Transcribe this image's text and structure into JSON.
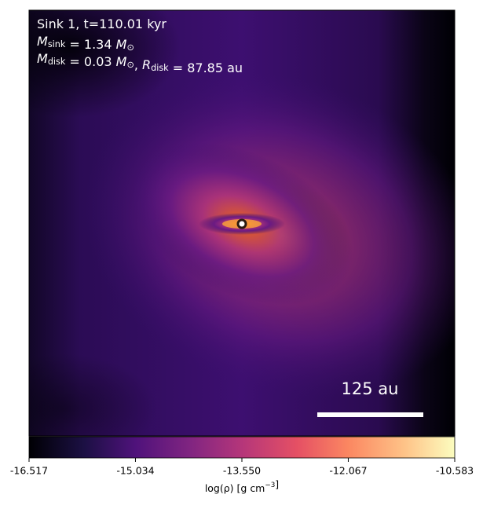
{
  "chart_data": {
    "type": "image",
    "annotations": [
      [
        {
          "text": "Sink 1, t=110.01 kyr"
        }
      ],
      [
        {
          "text": "M",
          "italic": true
        },
        {
          "sub": "sink"
        },
        {
          "text": " = 1.34 "
        },
        {
          "text": "M",
          "italic": true
        },
        {
          "sub": "⊙"
        }
      ],
      [
        {
          "text": "M",
          "italic": true
        },
        {
          "sub": "disk"
        },
        {
          "text": " = 0.03 "
        },
        {
          "text": "M",
          "italic": true
        },
        {
          "sub": "⊙"
        },
        {
          "text": ", "
        },
        {
          "text": "R",
          "italic": true
        },
        {
          "sub": "disk"
        },
        {
          "text": " = 87.85 au"
        }
      ]
    ],
    "scale_bar_label": "125 au",
    "colorbar": {
      "label": [
        {
          "text": "log(ρ) [g cm"
        },
        {
          "sup": "−3"
        },
        {
          "text": "]"
        }
      ],
      "lim": [
        -16.517,
        -10.583
      ],
      "ticks": [
        -16.517,
        -15.034,
        {
          "value": -13.55,
          "label": "-13.550"
        },
        -12.067,
        -10.583
      ]
    }
  }
}
